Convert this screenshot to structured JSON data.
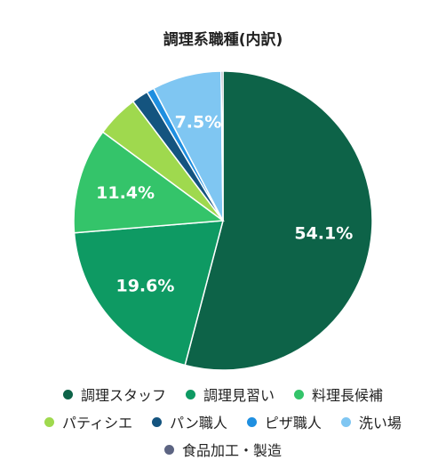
{
  "chart_data": {
    "type": "pie",
    "title": "調理系職種(内訳)",
    "start_angle_deg": 0,
    "direction": "clockwise",
    "slices": [
      {
        "name": "調理スタッフ",
        "value": 54.1,
        "color": "#0d6348",
        "label": "54.1%"
      },
      {
        "name": "調理見習い",
        "value": 19.6,
        "color": "#0e9a63",
        "label": "19.6%"
      },
      {
        "name": "料理長候補",
        "value": 11.4,
        "color": "#34c46a",
        "label": "11.4%"
      },
      {
        "name": "パティシエ",
        "value": 4.6,
        "color": "#9fd94e",
        "label": ""
      },
      {
        "name": "パン職人",
        "value": 1.8,
        "color": "#14547f",
        "label": ""
      },
      {
        "name": "ピザ職人",
        "value": 0.8,
        "color": "#1f8fe0",
        "label": ""
      },
      {
        "name": "洗い場",
        "value": 7.5,
        "color": "#7fc6f2",
        "label": "7.5%"
      },
      {
        "name": "食品加工・製造",
        "value": 0.2,
        "color": "#5c6482",
        "label": ""
      }
    ],
    "legend": {
      "placement": "bottom",
      "rows": [
        [
          "調理スタッフ",
          "調理見習い",
          "料理長候補"
        ],
        [
          "パティシエ",
          "パン職人",
          "ピザ職人",
          "洗い場"
        ],
        [
          "食品加工・製造"
        ]
      ]
    }
  }
}
